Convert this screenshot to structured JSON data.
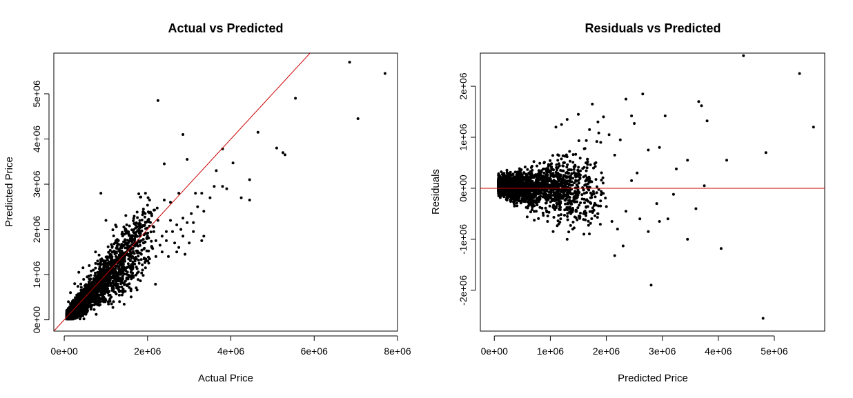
{
  "colors": {
    "points": "#000000",
    "reference_line": "#cc0000",
    "background": "#ffffff"
  },
  "chart_data": [
    {
      "type": "scatter",
      "title": "Actual vs Predicted",
      "xlabel": "Actual Price",
      "ylabel": "Predicted Price",
      "xlim": [
        -250000,
        8000000
      ],
      "ylim": [
        -250000,
        5900000
      ],
      "xticks": [
        {
          "value": 0,
          "label": "0e+00"
        },
        {
          "value": 2000000,
          "label": "2e+06"
        },
        {
          "value": 4000000,
          "label": "4e+06"
        },
        {
          "value": 6000000,
          "label": "6e+06"
        },
        {
          "value": 8000000,
          "label": "8e+06"
        }
      ],
      "yticks": [
        {
          "value": 0,
          "label": "0e+00"
        },
        {
          "value": 1000000,
          "label": "1e+06"
        },
        {
          "value": 2000000,
          "label": "2e+06"
        },
        {
          "value": 3000000,
          "label": "3e+06"
        },
        {
          "value": 4000000,
          "label": "4e+06"
        },
        {
          "value": 5000000,
          "label": "5e+06"
        }
      ],
      "reference_line": {
        "type": "abline",
        "intercept": 0,
        "slope": 1,
        "color": "red"
      },
      "points": [
        [
          6850000,
          5700000
        ],
        [
          7700000,
          5450000
        ],
        [
          7050000,
          4450000
        ],
        [
          5550000,
          4900000
        ],
        [
          2250000,
          4850000
        ],
        [
          2850000,
          4100000
        ],
        [
          4650000,
          4150000
        ],
        [
          5100000,
          3800000
        ],
        [
          5250000,
          3700000
        ],
        [
          5300000,
          3650000
        ],
        [
          3800000,
          3780000
        ],
        [
          4050000,
          3470000
        ],
        [
          2400000,
          3450000
        ],
        [
          2950000,
          3550000
        ],
        [
          3650000,
          3300000
        ],
        [
          4450000,
          3100000
        ],
        [
          3800000,
          2950000
        ],
        [
          3900000,
          2900000
        ],
        [
          4250000,
          2700000
        ],
        [
          4450000,
          2650000
        ],
        [
          3300000,
          2800000
        ],
        [
          3500000,
          2700000
        ],
        [
          2750000,
          2800000
        ],
        [
          2550000,
          2600000
        ],
        [
          3200000,
          2500000
        ],
        [
          3050000,
          2350000
        ],
        [
          2850000,
          2250000
        ],
        [
          3100000,
          2150000
        ],
        [
          2700000,
          2100000
        ],
        [
          2550000,
          2200000
        ],
        [
          2600000,
          1950000
        ],
        [
          3350000,
          1850000
        ],
        [
          3300000,
          1750000
        ],
        [
          2850000,
          1850000
        ],
        [
          2450000,
          1750000
        ],
        [
          2350000,
          1500000
        ],
        [
          2200000,
          1400000
        ],
        [
          2050000,
          1350000
        ],
        [
          1950000,
          1150000
        ],
        [
          1800000,
          1250000
        ],
        [
          1650000,
          1150000
        ],
        [
          1400000,
          950000
        ],
        [
          880000,
          2800000
        ],
        [
          1900000,
          2450000
        ],
        [
          1950000,
          2800000
        ],
        [
          2100000,
          2300000
        ],
        [
          1750000,
          2050000
        ],
        [
          1550000,
          1900000
        ],
        [
          1500000,
          2100000
        ],
        [
          1300000,
          1750000
        ],
        [
          1150000,
          1600000
        ],
        [
          1000000,
          2200000
        ],
        [
          900000,
          1350000
        ],
        [
          750000,
          1500000
        ],
        [
          600000,
          1200000
        ],
        [
          450000,
          1150000
        ],
        [
          350000,
          1050000
        ],
        [
          2750000,
          1600000
        ],
        [
          3000000,
          1700000
        ],
        [
          2900000,
          1450000
        ],
        [
          2700000,
          1500000
        ],
        [
          2200000,
          1750000
        ],
        [
          2350000,
          1850000
        ],
        [
          2450000,
          1950000
        ],
        [
          2150000,
          1950000
        ],
        [
          1950000,
          2150000
        ],
        [
          2250000,
          2200000
        ],
        [
          2050000,
          2650000
        ],
        [
          3150000,
          2800000
        ],
        [
          3350000,
          2400000
        ],
        [
          3600000,
          2950000
        ],
        [
          2400000,
          2650000
        ],
        [
          2100000,
          1600000
        ],
        [
          1850000,
          1450000
        ],
        [
          1700000,
          1300000
        ],
        [
          1600000,
          1050000
        ],
        [
          1500000,
          900000
        ],
        [
          1350000,
          850000
        ],
        [
          1250000,
          780000
        ],
        [
          1150000,
          650000
        ],
        [
          1050000,
          600000
        ],
        [
          950000,
          500000
        ],
        [
          850000,
          420000
        ],
        [
          720000,
          330000
        ],
        [
          650000,
          280000
        ],
        [
          560000,
          200000
        ],
        [
          480000,
          150000
        ],
        [
          380000,
          100000
        ],
        [
          300000,
          60000
        ],
        [
          220000,
          30000
        ],
        [
          160000,
          20000
        ],
        [
          120000,
          50000
        ],
        [
          100000,
          400000
        ],
        [
          150000,
          600000
        ],
        [
          250000,
          800000
        ],
        [
          550000,
          950000
        ],
        [
          700000,
          1100000
        ],
        [
          800000,
          1300000
        ],
        [
          1100000,
          1450000
        ],
        [
          1250000,
          1500000
        ],
        [
          1400000,
          1650000
        ],
        [
          1600000,
          1750000
        ],
        [
          1750000,
          1650000
        ],
        [
          1850000,
          1750000
        ],
        [
          2000000,
          1850000
        ],
        [
          2150000,
          2050000
        ],
        [
          2300000,
          1650000
        ],
        [
          2500000,
          1400000
        ],
        [
          2650000,
          1700000
        ],
        [
          2800000,
          2000000
        ],
        [
          2950000,
          2150000
        ],
        [
          3100000,
          1950000
        ]
      ],
      "cloud_samples": 2600,
      "cloud_residual_sd_fraction": 0.22
    },
    {
      "type": "scatter",
      "title": "Residuals vs Predicted",
      "xlabel": "Predicted Price",
      "ylabel": "Residuals",
      "xlim": [
        -250000,
        5900000
      ],
      "ylim": [
        -2800000,
        2650000
      ],
      "xticks": [
        {
          "value": 0,
          "label": "0e+00"
        },
        {
          "value": 1000000,
          "label": "1e+06"
        },
        {
          "value": 2000000,
          "label": "2e+06"
        },
        {
          "value": 3000000,
          "label": "3e+06"
        },
        {
          "value": 4000000,
          "label": "4e+06"
        },
        {
          "value": 5000000,
          "label": "5e+06"
        }
      ],
      "yticks": [
        {
          "value": -2000000,
          "label": "-2e+06"
        },
        {
          "value": -1000000,
          "label": "-1e+06"
        },
        {
          "value": 0,
          "label": "0e+00"
        },
        {
          "value": 1000000,
          "label": "1e+06"
        },
        {
          "value": 2000000,
          "label": "2e+06"
        }
      ],
      "reference_line": {
        "type": "hline",
        "y": 0,
        "color": "red"
      },
      "points": [
        [
          4450000,
          2600000
        ],
        [
          5450000,
          2250000
        ],
        [
          5700000,
          1200000
        ],
        [
          4850000,
          700000
        ],
        [
          4150000,
          550000
        ],
        [
          3650000,
          1700000
        ],
        [
          3700000,
          1620000
        ],
        [
          3800000,
          1320000
        ],
        [
          4800000,
          -2550000
        ],
        [
          4050000,
          -1180000
        ],
        [
          3450000,
          -1000000
        ],
        [
          2800000,
          -1900000
        ],
        [
          2150000,
          -1320000
        ],
        [
          2300000,
          -1130000
        ],
        [
          2650000,
          1850000
        ],
        [
          2350000,
          1750000
        ],
        [
          1750000,
          1650000
        ],
        [
          2450000,
          1420000
        ],
        [
          2500000,
          1270000
        ],
        [
          3050000,
          1420000
        ],
        [
          2750000,
          750000
        ],
        [
          2950000,
          800000
        ],
        [
          3450000,
          550000
        ],
        [
          3250000,
          380000
        ],
        [
          3750000,
          50000
        ],
        [
          3600000,
          -400000
        ],
        [
          3100000,
          -600000
        ],
        [
          2950000,
          -650000
        ],
        [
          2750000,
          -850000
        ],
        [
          2600000,
          -600000
        ],
        [
          3200000,
          -120000
        ],
        [
          2900000,
          -300000
        ],
        [
          2550000,
          300000
        ],
        [
          2450000,
          150000
        ],
        [
          2350000,
          -450000
        ],
        [
          2200000,
          -800000
        ],
        [
          2100000,
          -650000
        ],
        [
          1950000,
          1400000
        ],
        [
          1850000,
          1300000
        ],
        [
          1700000,
          1150000
        ],
        [
          1500000,
          1450000
        ],
        [
          1300000,
          1350000
        ],
        [
          1200000,
          1250000
        ],
        [
          1100000,
          1200000
        ],
        [
          2050000,
          1050000
        ],
        [
          1900000,
          900000
        ],
        [
          2250000,
          950000
        ],
        [
          2150000,
          650000
        ],
        [
          1850000,
          -500000
        ],
        [
          1600000,
          -900000
        ],
        [
          1400000,
          -800000
        ],
        [
          1300000,
          -1000000
        ],
        [
          1150000,
          -700000
        ],
        [
          1050000,
          -850000
        ],
        [
          950000,
          -650000
        ]
      ],
      "cloud_samples": 2600
    }
  ]
}
